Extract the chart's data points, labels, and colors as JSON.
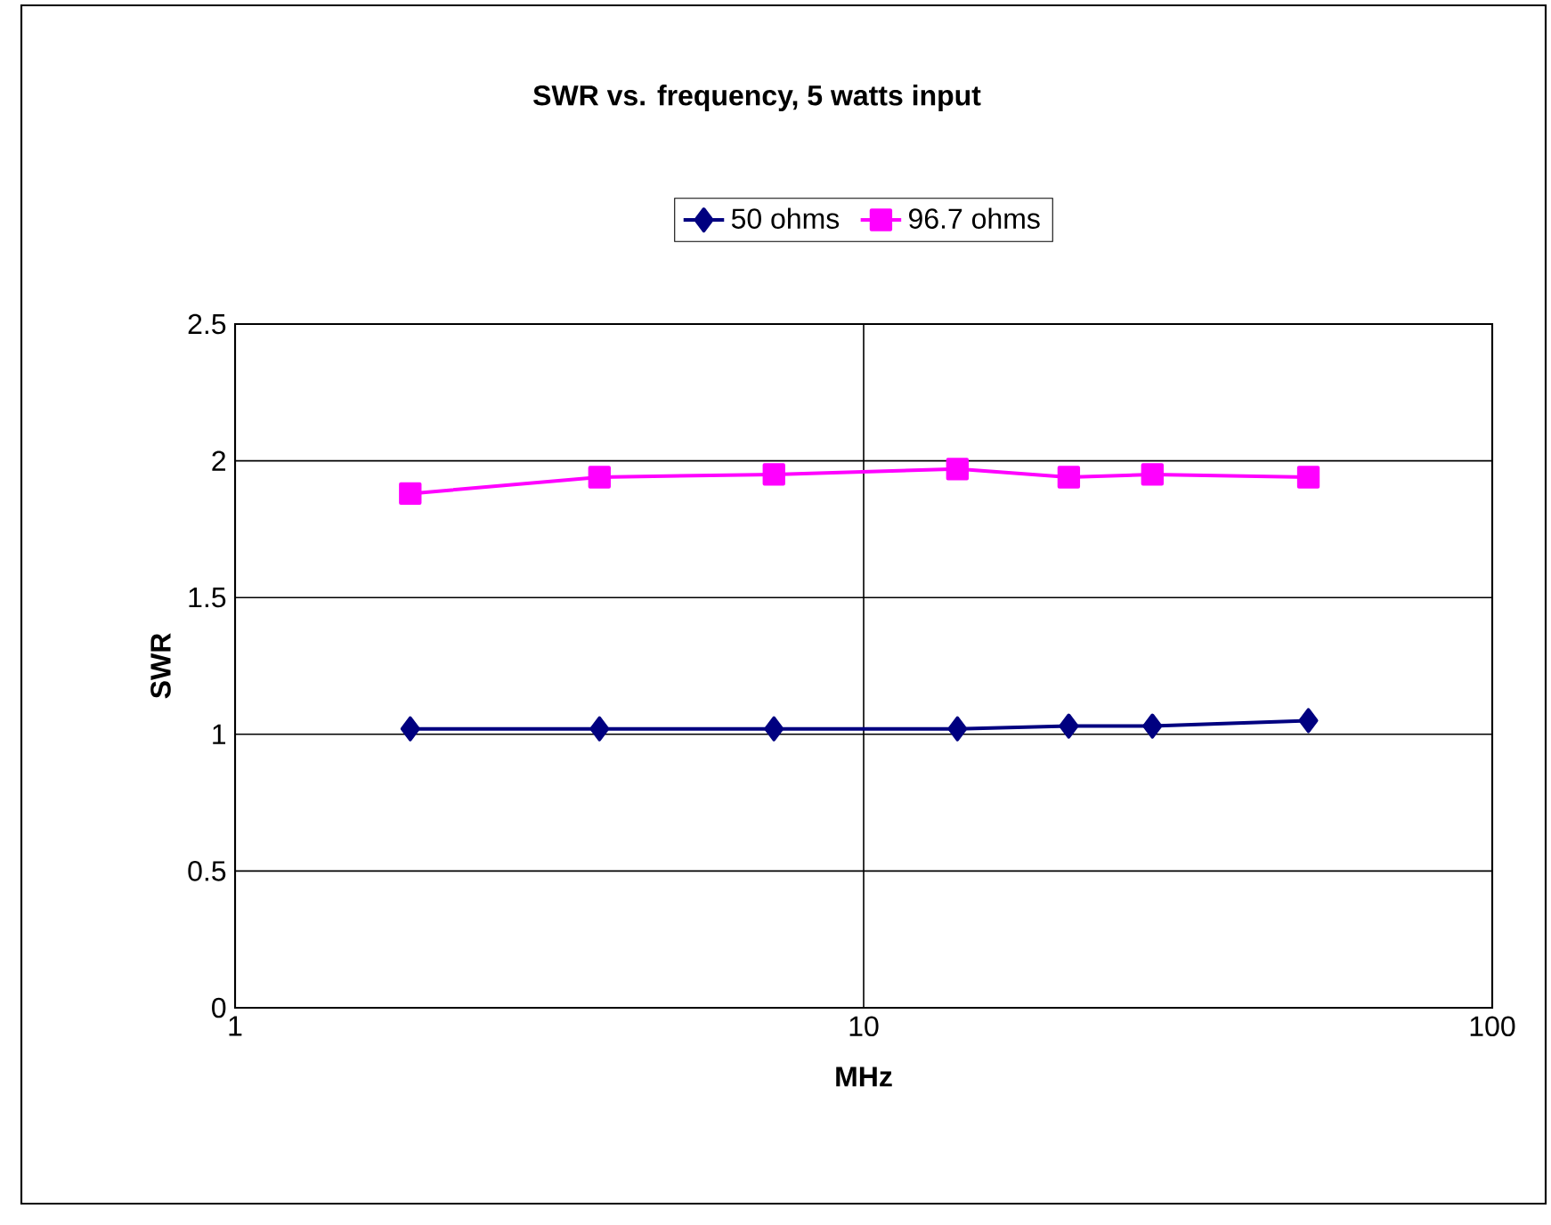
{
  "chart_data": {
    "type": "line",
    "title": "SWR vs. frequency, 5 watts input",
    "xlabel": "MHz",
    "ylabel": "SWR",
    "x": [
      1.9,
      3.8,
      7.2,
      14.1,
      21.2,
      28.8,
      51
    ],
    "series": [
      {
        "name": "50 ohms",
        "color": "#000080",
        "marker": "diamond",
        "values": [
          1.02,
          1.02,
          1.02,
          1.02,
          1.03,
          1.03,
          1.05
        ]
      },
      {
        "name": "96.7 ohms",
        "color": "#ff00ff",
        "marker": "square",
        "values": [
          1.88,
          1.94,
          1.95,
          1.97,
          1.94,
          1.95,
          1.94
        ]
      }
    ],
    "log": "x",
    "xlim": [
      1,
      100
    ],
    "xticks": [
      1,
      10,
      100
    ],
    "ylim": [
      0,
      2.5
    ],
    "yticks": [
      0,
      0.5,
      1,
      1.5,
      2,
      2.5
    ],
    "grid": true,
    "legend": "top",
    "line_style": "solid"
  }
}
